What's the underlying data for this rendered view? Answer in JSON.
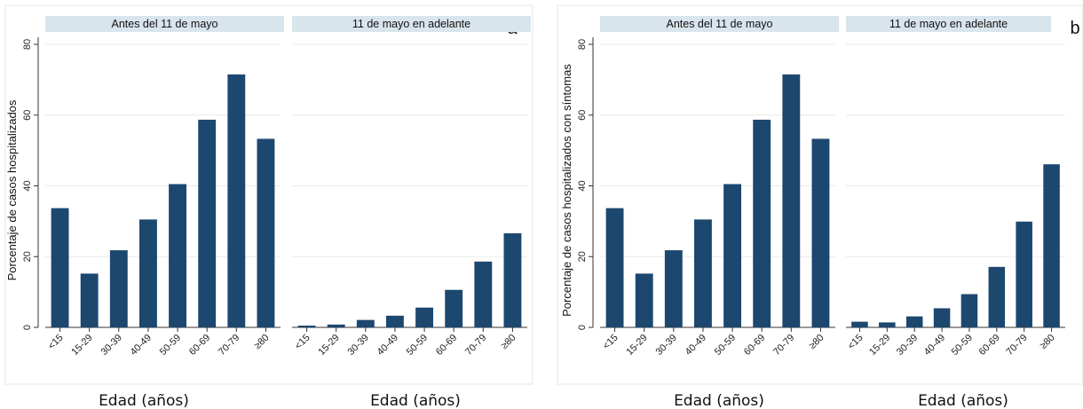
{
  "chart_data": [
    {
      "type": "bar",
      "panel_letter": "a",
      "ylabel": "Porcentaje de casos hospitalizados",
      "ylim": [
        0,
        80
      ],
      "yticks": [
        0,
        20,
        40,
        60,
        80
      ],
      "grid": true,
      "categories": [
        "<15",
        "15-29",
        "30-39",
        "40-49",
        "50-59",
        "60-69",
        "70-79",
        "≥80"
      ],
      "color": "#1c476f",
      "facets": [
        {
          "name": "Antes del 11 de mayo",
          "values": [
            33.7,
            15.2,
            21.8,
            30.5,
            40.5,
            58.7,
            71.5,
            53.3
          ],
          "xlabel": "Edad (años)"
        },
        {
          "name": "11 de mayo en adelante",
          "values": [
            0.5,
            0.8,
            2.1,
            3.3,
            5.6,
            10.6,
            18.6,
            26.6
          ],
          "xlabel": "Edad (años)"
        }
      ]
    },
    {
      "type": "bar",
      "panel_letter": "b",
      "ylabel": "Porcentaje de casos hospitalizados con síntomas",
      "ylim": [
        0,
        80
      ],
      "yticks": [
        0,
        20,
        40,
        60,
        80
      ],
      "grid": true,
      "categories": [
        "<15",
        "15-29",
        "30-39",
        "40-49",
        "50-59",
        "60-69",
        "70-79",
        "≥80"
      ],
      "color": "#1c476f",
      "facets": [
        {
          "name": "Antes del 11 de mayo",
          "values": [
            33.7,
            15.2,
            21.8,
            30.5,
            40.5,
            58.7,
            71.5,
            53.3
          ],
          "xlabel": "Edad (años)"
        },
        {
          "name": "11 de mayo en adelante",
          "values": [
            1.6,
            1.4,
            3.1,
            5.4,
            9.4,
            17.1,
            29.9,
            46.1
          ],
          "xlabel": "Edad (años)"
        }
      ]
    }
  ]
}
